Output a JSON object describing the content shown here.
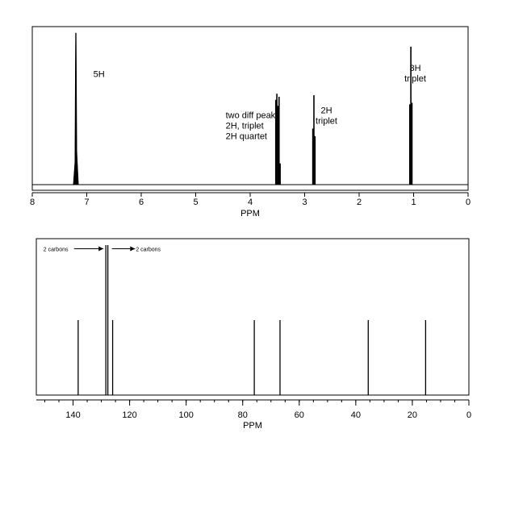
{
  "chart_data": [
    {
      "type": "line",
      "title": "",
      "xlabel": "PPM",
      "ylabel": "",
      "xlim": [
        8,
        0
      ],
      "x_reversed": true,
      "grid": false,
      "x_ticks": [
        8,
        7,
        6,
        5,
        4,
        3,
        2,
        1,
        0
      ],
      "x_tick_labels": [
        "8",
        "7",
        "6",
        "5",
        "4",
        "3",
        "2",
        "1",
        "0"
      ],
      "peaks": [
        {
          "shift": 7.2,
          "height": 1.0
        },
        {
          "shift": 3.53,
          "height": 0.56
        },
        {
          "shift": 3.51,
          "height": 0.6
        },
        {
          "shift": 3.49,
          "height": 0.52
        },
        {
          "shift": 3.47,
          "height": 0.58
        },
        {
          "shift": 3.45,
          "height": 0.14
        },
        {
          "shift": 2.85,
          "height": 0.37
        },
        {
          "shift": 2.83,
          "height": 0.59
        },
        {
          "shift": 2.81,
          "height": 0.32
        },
        {
          "shift": 1.07,
          "height": 0.53
        },
        {
          "shift": 1.05,
          "height": 0.91
        },
        {
          "shift": 1.03,
          "height": 0.54
        }
      ],
      "annotations": [
        {
          "lines": [
            "5H"
          ],
          "ppm": 6.88,
          "level": 0.71,
          "size": 11
        },
        {
          "lines": [
            "two diff peaks",
            "2H, triplet",
            "2H quartet"
          ],
          "ppm": 4.45,
          "level": 0.44,
          "size": 11
        },
        {
          "lines": [
            "2H",
            "triplet"
          ],
          "ppm": 2.6,
          "level": 0.47,
          "size": 11
        },
        {
          "lines": [
            "3H",
            "triplet"
          ],
          "ppm": 0.97,
          "level": 0.75,
          "size": 11
        }
      ]
    },
    {
      "type": "bar",
      "title": "",
      "xlabel": "PPM",
      "ylabel": "",
      "xlim": [
        153,
        0
      ],
      "x_reversed": true,
      "grid": false,
      "x_ticks": [
        140,
        120,
        100,
        80,
        60,
        40,
        20,
        0
      ],
      "x_tick_labels": [
        "140",
        "120",
        "100",
        "80",
        "60",
        "40",
        "20",
        "0"
      ],
      "minor_tick_step": 5,
      "peaks": [
        {
          "shift": 138.2,
          "height": 0.5
        },
        {
          "shift": 128.4,
          "height": 1.0
        },
        {
          "shift": 127.7,
          "height": 1.0
        },
        {
          "shift": 126.0,
          "height": 0.5
        },
        {
          "shift": 75.9,
          "height": 0.5
        },
        {
          "shift": 66.8,
          "height": 0.5
        },
        {
          "shift": 35.6,
          "height": 0.5
        },
        {
          "shift": 15.3,
          "height": 0.5
        }
      ],
      "annotations": [
        {
          "lines": [
            "2 carbons"
          ],
          "ppm": 150.5,
          "level": 0.96,
          "size": 7,
          "arrow_to_ppm": 128.4
        },
        {
          "lines": [
            "2 carbons"
          ],
          "ppm": 117.8,
          "level": 0.96,
          "size": 7,
          "arrow_from_ppm": 127.7
        }
      ]
    }
  ]
}
